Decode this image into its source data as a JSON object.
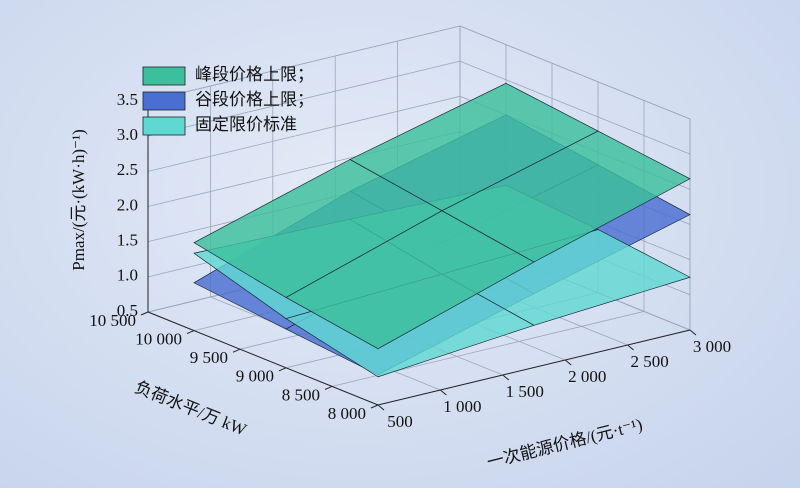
{
  "chart_data": {
    "type": "surface3d",
    "xlabel": "一次能源价格/(元·t⁻¹)",
    "ylabel": "负荷水平/万 kW",
    "zlabel": "Pmax/(元·(kW·h)⁻¹)",
    "x": [
      500,
      1750,
      3000
    ],
    "y": [
      8000,
      9000,
      10000
    ],
    "xlim": [
      500,
      3000
    ],
    "ylim": [
      8000,
      10500
    ],
    "zlim": [
      0.5,
      3.5
    ],
    "xticks": [
      {
        "value": 500,
        "label": "500"
      },
      {
        "value": 1000,
        "label": "1 000"
      },
      {
        "value": 1500,
        "label": "1 500"
      },
      {
        "value": 2000,
        "label": "2 000"
      },
      {
        "value": 2500,
        "label": "2 500"
      },
      {
        "value": 3000,
        "label": "3 000"
      }
    ],
    "yticks": [
      {
        "value": 8000,
        "label": "8 000"
      },
      {
        "value": 8500,
        "label": "8 500"
      },
      {
        "value": 9000,
        "label": "9 000"
      },
      {
        "value": 9500,
        "label": "9 500"
      },
      {
        "value": 10000,
        "label": "10 000"
      },
      {
        "value": 10500,
        "label": "10 500"
      }
    ],
    "zticks": [
      0.5,
      {
        "value": 1,
        "label": "1.0"
      },
      1.5,
      {
        "value": 2,
        "label": "2.0"
      },
      2.5,
      {
        "value": 3,
        "label": "3.0"
      },
      3.5
    ],
    "series": [
      {
        "name": "峰段价格上限；",
        "color": "#3cbf9c",
        "values": [
          [
            1.3,
            2.0,
            2.65
          ],
          [
            1.5,
            2.2,
            2.8
          ],
          [
            1.75,
            2.4,
            2.95
          ]
        ]
      },
      {
        "name": "谷段价格上限；",
        "color": "#4a6fd2",
        "values": [
          [
            0.93,
            1.55,
            2.14
          ],
          [
            1.05,
            1.75,
            2.32
          ],
          [
            1.18,
            1.95,
            2.5
          ]
        ]
      },
      {
        "name": "固定限价标准",
        "color": "#5fd8d2",
        "values": [
          [
            0.9,
            1.1,
            1.25
          ],
          [
            1.2,
            1.3,
            1.4
          ],
          [
            1.6,
            1.55,
            1.5
          ]
        ]
      }
    ]
  }
}
